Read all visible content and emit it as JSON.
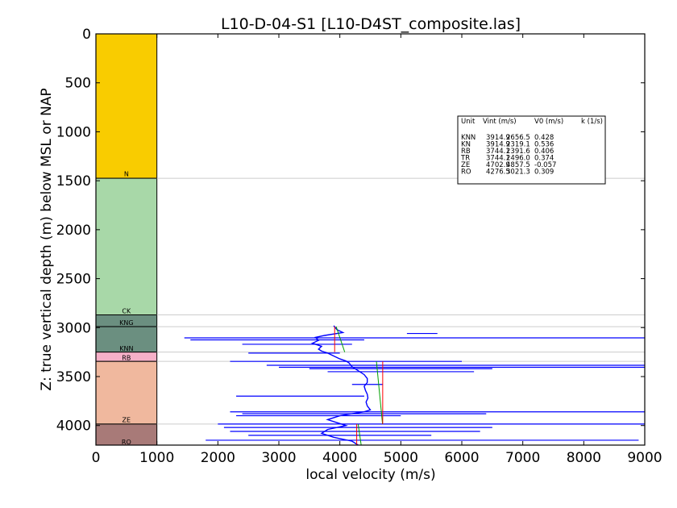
{
  "chart_data": {
    "type": "line",
    "title": "L10-D-04-S1 [L10-D4ST_composite.las]",
    "xlabel": "local velocity (m/s)",
    "ylabel": "Z: true vertical depth (m) below MSL or NAP",
    "xlim": [
      0,
      9000
    ],
    "ylim": [
      4200,
      0
    ],
    "x_ticks": [
      "0",
      "1000",
      "2000",
      "3000",
      "4000",
      "5000",
      "6000",
      "7000",
      "8000",
      "9000"
    ],
    "y_ticks": [
      "0",
      "500",
      "1000",
      "1500",
      "2000",
      "2500",
      "3000",
      "3500",
      "4000"
    ],
    "units": [
      {
        "name": "N",
        "top": 0,
        "base": 1475,
        "color": "#f9cc00"
      },
      {
        "name": "CK",
        "top": 1475,
        "base": 2870,
        "color": "#a8d8a8"
      },
      {
        "name": "KNG",
        "top": 2870,
        "base": 2990,
        "color": "#6b8f80"
      },
      {
        "name": "KNN",
        "top": 2990,
        "base": 3250,
        "color": "#6b8f80"
      },
      {
        "name": "RB",
        "top": 3250,
        "base": 3345,
        "color": "#f6b0c8"
      },
      {
        "name": "ZE",
        "top": 3345,
        "base": 3985,
        "color": "#f0b89e"
      },
      {
        "name": "RO",
        "top": 3985,
        "base": 4200,
        "color": "#a87a78"
      }
    ],
    "label_depths": {
      "N": 1430,
      "CK": 2830,
      "KNG": 2950,
      "KNN": 3210,
      "RB": 3305,
      "ZE": 3940,
      "RO": 4165
    },
    "boundaries": [
      1475,
      2870,
      2990,
      3250,
      3345,
      3985
    ],
    "velocity_log": {
      "depth": [
        2980,
        3020,
        3050,
        3080,
        3100,
        3130,
        3160,
        3190,
        3220,
        3240,
        3260,
        3290,
        3320,
        3340,
        3360,
        3400,
        3440,
        3480,
        3520,
        3560,
        3600,
        3640,
        3680,
        3720,
        3760,
        3800,
        3840,
        3860,
        3880,
        3900,
        3940,
        3980,
        4000,
        4040,
        4080,
        4120,
        4160,
        4200
      ],
      "velocity": [
        3900,
        3950,
        4050,
        3750,
        3600,
        3650,
        3550,
        3700,
        3650,
        3700,
        3800,
        3900,
        4000,
        4100,
        4150,
        4200,
        4300,
        4400,
        4450,
        4450,
        4400,
        4420,
        4450,
        4460,
        4430,
        4450,
        4500,
        4400,
        4200,
        4000,
        3800,
        4000,
        4100,
        3800,
        3700,
        3900,
        4200,
        4300
      ]
    },
    "spikes": [
      {
        "depth": 3060,
        "x0": 5100,
        "x1": 5600
      },
      {
        "depth": 3105,
        "x0": 1450,
        "x1": 9000
      },
      {
        "depth": 3125,
        "x0": 1550,
        "x1": 4400
      },
      {
        "depth": 3170,
        "x0": 2400,
        "x1": 4200
      },
      {
        "depth": 3260,
        "x0": 2500,
        "x1": 4000
      },
      {
        "depth": 3345,
        "x0": 2200,
        "x1": 6000
      },
      {
        "depth": 3385,
        "x0": 2800,
        "x1": 9000
      },
      {
        "depth": 3405,
        "x0": 3000,
        "x1": 9000
      },
      {
        "depth": 3420,
        "x0": 3500,
        "x1": 6500
      },
      {
        "depth": 3450,
        "x0": 3800,
        "x1": 6200
      },
      {
        "depth": 3580,
        "x0": 4200,
        "x1": 4700
      },
      {
        "depth": 3700,
        "x0": 2300,
        "x1": 4400
      },
      {
        "depth": 3860,
        "x0": 2200,
        "x1": 9000
      },
      {
        "depth": 3880,
        "x0": 2400,
        "x1": 6400
      },
      {
        "depth": 3900,
        "x0": 2300,
        "x1": 5000
      },
      {
        "depth": 3985,
        "x0": 2000,
        "x1": 9000
      },
      {
        "depth": 4020,
        "x0": 2100,
        "x1": 6500
      },
      {
        "depth": 4060,
        "x0": 2200,
        "x1": 6300
      },
      {
        "depth": 4100,
        "x0": 2500,
        "x1": 5500
      },
      {
        "depth": 4150,
        "x0": 1800,
        "x1": 8900
      }
    ],
    "fit_lines": [
      {
        "unit": "KNN",
        "color": "green",
        "depth": [
          2990,
          3250
        ],
        "velocity": [
          3940,
          4080
        ]
      },
      {
        "unit": "KNN",
        "color": "red",
        "depth": [
          2990,
          3250
        ],
        "velocity": [
          3914.9,
          3914.9
        ]
      },
      {
        "unit": "ZE",
        "color": "green",
        "depth": [
          3345,
          3985
        ],
        "velocity": [
          4600,
          4700
        ]
      },
      {
        "unit": "ZE",
        "color": "red",
        "depth": [
          3345,
          3985
        ],
        "velocity": [
          4702.9,
          4702.9
        ]
      },
      {
        "unit": "RO",
        "color": "green",
        "depth": [
          3985,
          4200
        ],
        "velocity": [
          4300,
          4350
        ]
      },
      {
        "unit": "RO",
        "color": "red",
        "depth": [
          3985,
          4200
        ],
        "velocity": [
          4276.5,
          4276.5
        ]
      }
    ],
    "legend": {
      "header": [
        "Unit",
        "Vint (m/s)",
        "V0 (m/s)",
        "k (1/s)"
      ],
      "rows": [
        [
          "KNN",
          "3914.9",
          "2656.5",
          "0.428"
        ],
        [
          "KN",
          "3914.9",
          "2319.1",
          "0.536"
        ],
        [
          "RB",
          "3744.1",
          "2391.6",
          "0.406"
        ],
        [
          "TR",
          "3744.1",
          "2496.0",
          "0.374"
        ],
        [
          "ZE",
          "4702.9",
          "4857.5",
          "-0.057"
        ],
        [
          "RO",
          "4276.5",
          "3021.3",
          "0.309"
        ]
      ],
      "placement": "upper-right"
    }
  }
}
